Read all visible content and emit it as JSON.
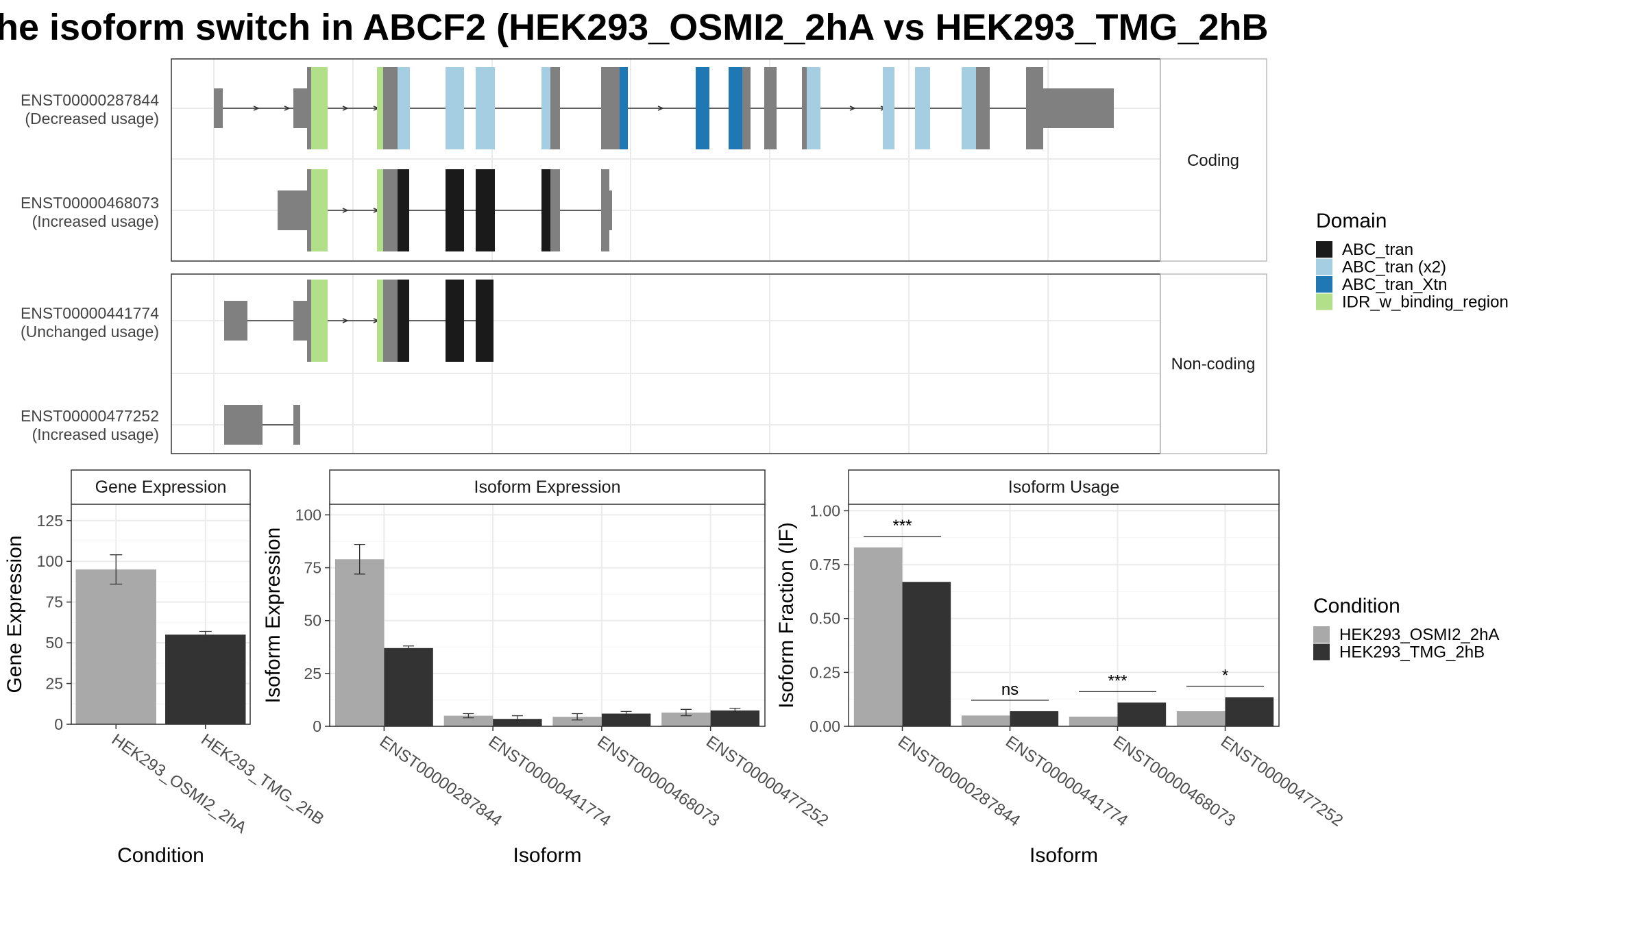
{
  "title": "he isoform switch in ABCF2 (HEK293_OSMI2_2hA vs HEK293_TMG_2hB",
  "colors": {
    "utr": "#808080",
    "abc_tran": "#1a1a1a",
    "abc_tran_x2": "#a6cee3",
    "abc_tran_xtn": "#1f78b4",
    "idr": "#b2df8a",
    "cond_a": "#a9a9a9",
    "cond_b": "#333333"
  },
  "facets": {
    "coding": "Coding",
    "noncoding": "Non-coding"
  },
  "isoforms": [
    {
      "id": "ENST00000287844",
      "usage": "(Decreased usage)",
      "group": "coding"
    },
    {
      "id": "ENST00000468073",
      "usage": "(Increased usage)",
      "group": "coding"
    },
    {
      "id": "ENST00000441774",
      "usage": "(Unchanged usage)",
      "group": "noncoding"
    },
    {
      "id": "ENST00000477252",
      "usage": "(Increased usage)",
      "group": "noncoding"
    }
  ],
  "domain_legend": {
    "title": "Domain",
    "items": [
      {
        "label": "ABC_tran",
        "color": "#1a1a1a"
      },
      {
        "label": "ABC_tran (x2)",
        "color": "#a6cee3"
      },
      {
        "label": "ABC_tran_Xtn",
        "color": "#1f78b4"
      },
      {
        "label": "IDR_w_binding_region",
        "color": "#b2df8a"
      }
    ]
  },
  "condition_legend": {
    "title": "Condition",
    "items": [
      {
        "label": "HEK293_OSMI2_2hA",
        "color": "#a9a9a9"
      },
      {
        "label": "HEK293_TMG_2hB",
        "color": "#333333"
      }
    ]
  },
  "chart_data": [
    {
      "type": "bar",
      "title": "Gene Expression",
      "xlabel": "Condition",
      "ylabel": "Gene Expression",
      "ylim": [
        0,
        135
      ],
      "yticks": [
        0,
        25,
        50,
        75,
        100,
        125
      ],
      "categories": [
        "HEK293_OSMI2_2hA",
        "HEK293_TMG_2hB"
      ],
      "values": [
        95,
        55
      ],
      "errors": [
        [
          86,
          104
        ],
        [
          53,
          57
        ]
      ]
    },
    {
      "type": "bar",
      "title": "Isoform Expression",
      "xlabel": "Isoform",
      "ylabel": "Isoform Expression",
      "ylim": [
        0,
        105
      ],
      "yticks": [
        0,
        25,
        50,
        75,
        100
      ],
      "categories": [
        "ENST00000287844",
        "ENST00000441774",
        "ENST00000468073",
        "ENST00000477252"
      ],
      "series": [
        {
          "name": "HEK293_OSMI2_2hA",
          "values": [
            79,
            5,
            4.5,
            6.5
          ],
          "errors": [
            [
              72,
              86
            ],
            [
              4,
              6
            ],
            [
              3,
              6
            ],
            [
              5,
              8
            ]
          ]
        },
        {
          "name": "HEK293_TMG_2hB",
          "values": [
            37,
            3.5,
            6,
            7.5
          ],
          "errors": [
            [
              36,
              38
            ],
            [
              2.5,
              5
            ],
            [
              5,
              7
            ],
            [
              6.5,
              8.5
            ]
          ]
        }
      ]
    },
    {
      "type": "bar",
      "title": "Isoform Usage",
      "xlabel": "Isoform",
      "ylabel": "Isoform Fraction (IF)",
      "ylim": [
        0,
        1.03
      ],
      "yticks": [
        "0.00",
        "0.25",
        "0.50",
        "0.75",
        "1.00"
      ],
      "categories": [
        "ENST00000287844",
        "ENST00000441774",
        "ENST00000468073",
        "ENST00000477252"
      ],
      "series": [
        {
          "name": "HEK293_OSMI2_2hA",
          "values": [
            0.83,
            0.05,
            0.045,
            0.07
          ]
        },
        {
          "name": "HEK293_TMG_2hB",
          "values": [
            0.67,
            0.07,
            0.11,
            0.135
          ]
        }
      ],
      "significance": [
        "***",
        "ns",
        "***",
        "*"
      ]
    }
  ]
}
